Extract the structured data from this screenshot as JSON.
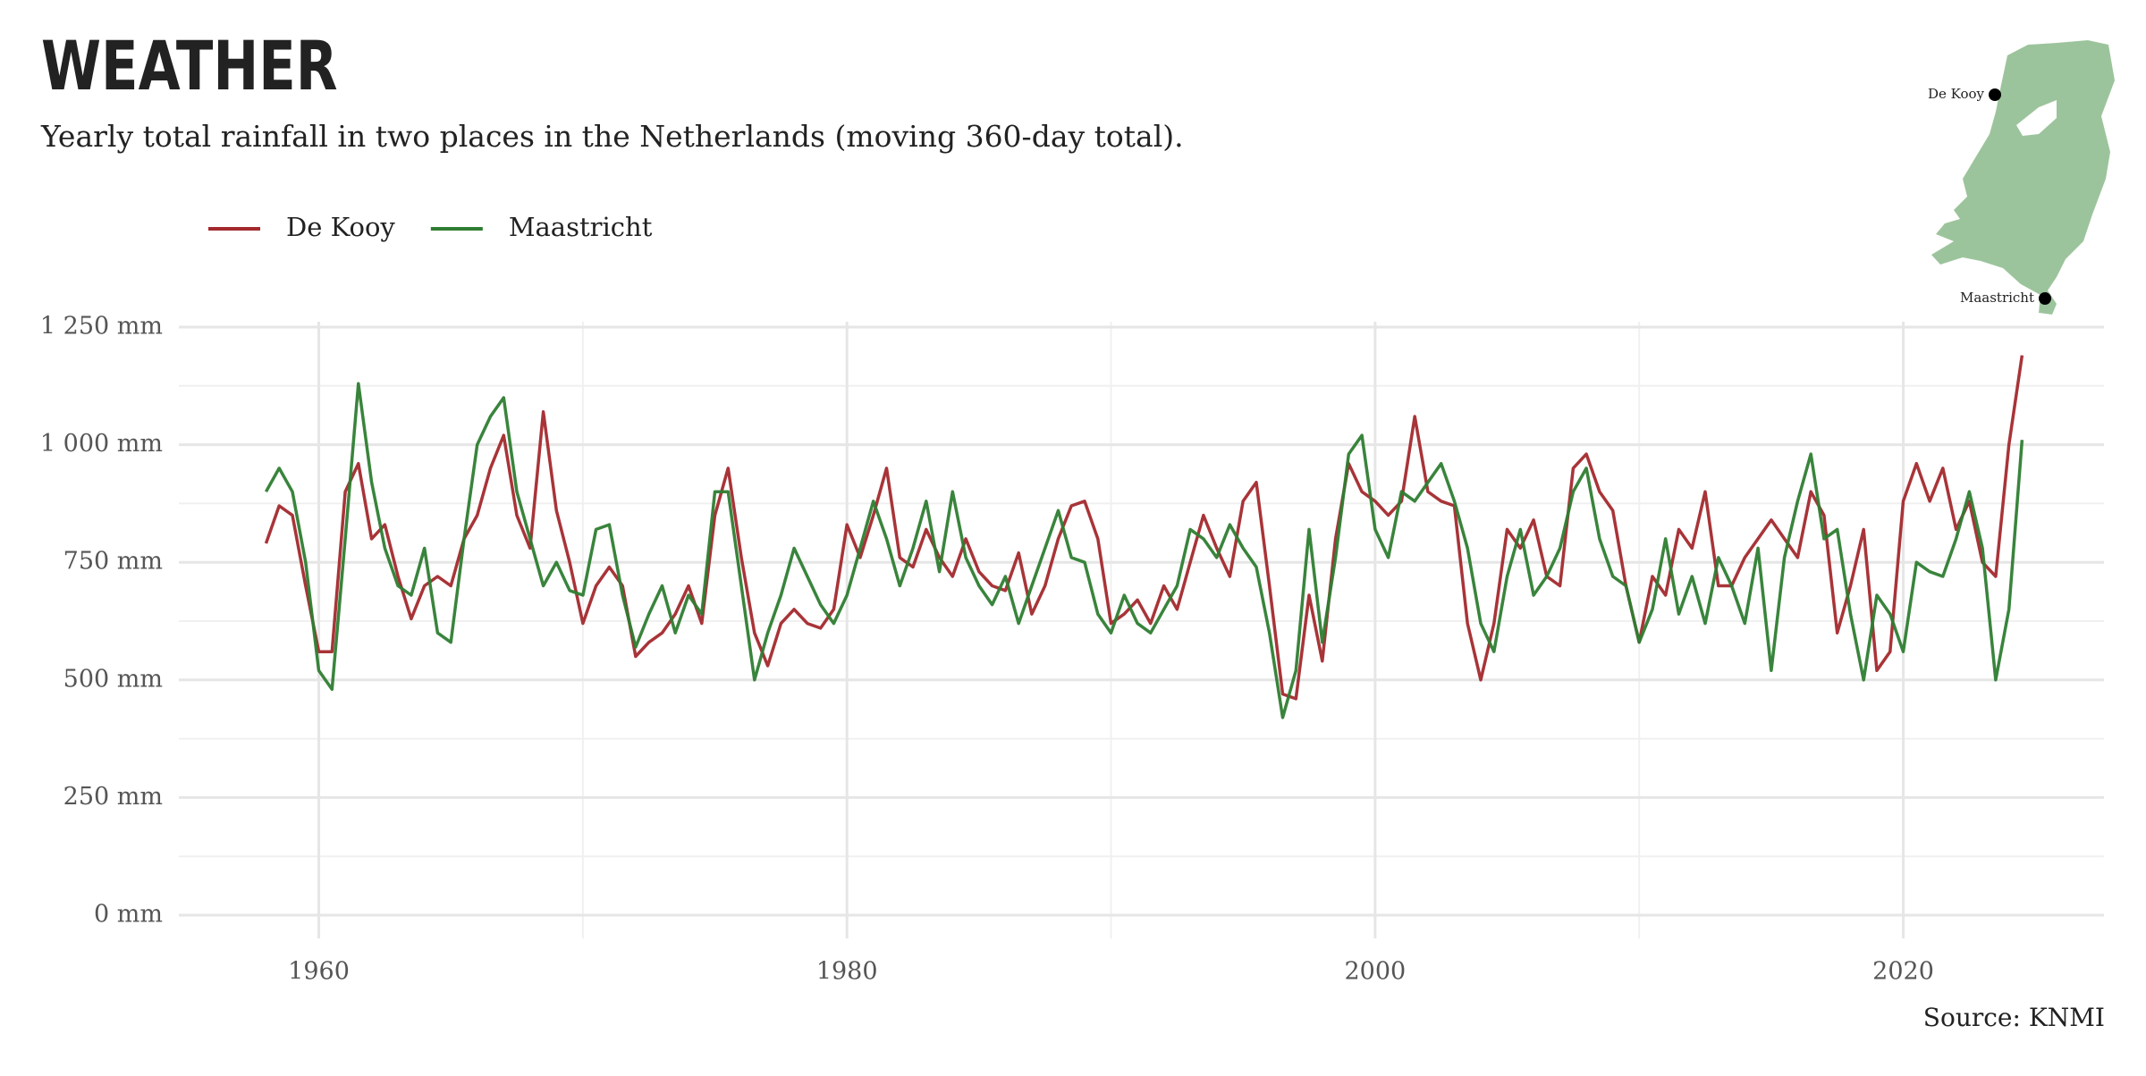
{
  "chart_data": {
    "type": "line",
    "title": "WEATHER",
    "subtitle": "Yearly total rainfall in two places in the Netherlands (moving 360-day total).",
    "source": "Source: KNMI",
    "x": [
      1958,
      1958.5,
      1959,
      1959.5,
      1960,
      1960.5,
      1961,
      1961.5,
      1962,
      1962.5,
      1963,
      1963.5,
      1964,
      1964.5,
      1965,
      1965.5,
      1966,
      1966.5,
      1967,
      1967.5,
      1968,
      1968.5,
      1969,
      1969.5,
      1970,
      1970.5,
      1971,
      1971.5,
      1972,
      1972.5,
      1973,
      1973.5,
      1974,
      1974.5,
      1975,
      1975.5,
      1976,
      1976.5,
      1977,
      1977.5,
      1978,
      1978.5,
      1979,
      1979.5,
      1980,
      1980.5,
      1981,
      1981.5,
      1982,
      1982.5,
      1983,
      1983.5,
      1984,
      1984.5,
      1985,
      1985.5,
      1986,
      1986.5,
      1987,
      1987.5,
      1988,
      1988.5,
      1989,
      1989.5,
      1990,
      1990.5,
      1991,
      1991.5,
      1992,
      1992.5,
      1993,
      1993.5,
      1994,
      1994.5,
      1995,
      1995.5,
      1996,
      1996.5,
      1997,
      1997.5,
      1998,
      1998.5,
      1999,
      1999.5,
      2000,
      2000.5,
      2001,
      2001.5,
      2002,
      2002.5,
      2003,
      2003.5,
      2004,
      2004.5,
      2005,
      2005.5,
      2006,
      2006.5,
      2007,
      2007.5,
      2008,
      2008.5,
      2009,
      2009.5,
      2010,
      2010.5,
      2011,
      2011.5,
      2012,
      2012.5,
      2013,
      2013.5,
      2014,
      2014.5,
      2015,
      2015.5,
      2016,
      2016.5,
      2017,
      2017.5,
      2018,
      2018.5,
      2019,
      2019.5,
      2020,
      2020.5,
      2021,
      2021.5,
      2022,
      2022.5,
      2023,
      2023.5,
      2024,
      2024.5
    ],
    "series": [
      {
        "name": "De Kooy",
        "color": "#a3292d",
        "values": [
          790,
          870,
          850,
          700,
          560,
          560,
          900,
          960,
          800,
          830,
          720,
          630,
          700,
          720,
          700,
          800,
          850,
          950,
          1020,
          850,
          780,
          1070,
          860,
          750,
          620,
          700,
          740,
          700,
          550,
          580,
          600,
          640,
          700,
          620,
          850,
          950,
          760,
          600,
          530,
          620,
          650,
          620,
          610,
          650,
          830,
          760,
          850,
          950,
          760,
          740,
          820,
          760,
          720,
          800,
          730,
          700,
          690,
          770,
          640,
          700,
          800,
          870,
          880,
          800,
          620,
          640,
          670,
          620,
          700,
          650,
          750,
          850,
          780,
          720,
          880,
          920,
          700,
          470,
          460,
          680,
          540,
          800,
          960,
          900,
          880,
          850,
          880,
          1060,
          900,
          880,
          870,
          620,
          500,
          620,
          820,
          780,
          840,
          720,
          700,
          950,
          980,
          900,
          860,
          700,
          580,
          720,
          680,
          820,
          780,
          900,
          700,
          700,
          760,
          800,
          840,
          800,
          760,
          900,
          850,
          600,
          700,
          820,
          520,
          560,
          880,
          960,
          880,
          950,
          820,
          880,
          750,
          720,
          1000,
          1190
        ]
      },
      {
        "name": "Maastricht",
        "color": "#2e7d32",
        "values": [
          900,
          950,
          900,
          750,
          520,
          480,
          800,
          1130,
          920,
          780,
          700,
          680,
          780,
          600,
          580,
          800,
          1000,
          1060,
          1100,
          900,
          800,
          700,
          750,
          690,
          680,
          820,
          830,
          680,
          570,
          640,
          700,
          600,
          680,
          640,
          900,
          900,
          700,
          500,
          600,
          680,
          780,
          720,
          660,
          620,
          680,
          780,
          880,
          800,
          700,
          780,
          880,
          730,
          900,
          760,
          700,
          660,
          720,
          620,
          700,
          780,
          860,
          760,
          750,
          640,
          600,
          680,
          620,
          600,
          650,
          700,
          820,
          800,
          760,
          830,
          780,
          740,
          600,
          420,
          520,
          820,
          580,
          760,
          980,
          1020,
          820,
          760,
          900,
          880,
          920,
          960,
          880,
          780,
          620,
          560,
          720,
          820,
          680,
          720,
          780,
          900,
          950,
          800,
          720,
          700,
          580,
          650,
          800,
          640,
          720,
          620,
          760,
          700,
          620,
          780,
          520,
          760,
          880,
          980,
          800,
          820,
          640,
          500,
          680,
          640,
          560,
          750,
          730,
          720,
          800,
          900,
          780,
          500,
          650,
          1010
        ]
      }
    ],
    "xlim": [
      1954.7,
      2027.6
    ],
    "ylim": [
      0,
      1250
    ],
    "xticks": [
      1960,
      1980,
      2000,
      2020
    ],
    "x_minor_ticks": [
      1970,
      1990,
      2010
    ],
    "yticks": [
      {
        "value": 0,
        "label": "0 mm"
      },
      {
        "value": 250,
        "label": "250 mm"
      },
      {
        "value": 500,
        "label": "500 mm"
      },
      {
        "value": 750,
        "label": "750 mm"
      },
      {
        "value": 1000,
        "label": "1 000 mm"
      },
      {
        "value": 1250,
        "label": "1 250 mm"
      }
    ],
    "y_minor_ticks": [
      125,
      375,
      625,
      875,
      1125
    ],
    "grid": true,
    "legend": "top-left",
    "map": {
      "labels": [
        "De Kooy",
        "Maastricht"
      ]
    }
  }
}
